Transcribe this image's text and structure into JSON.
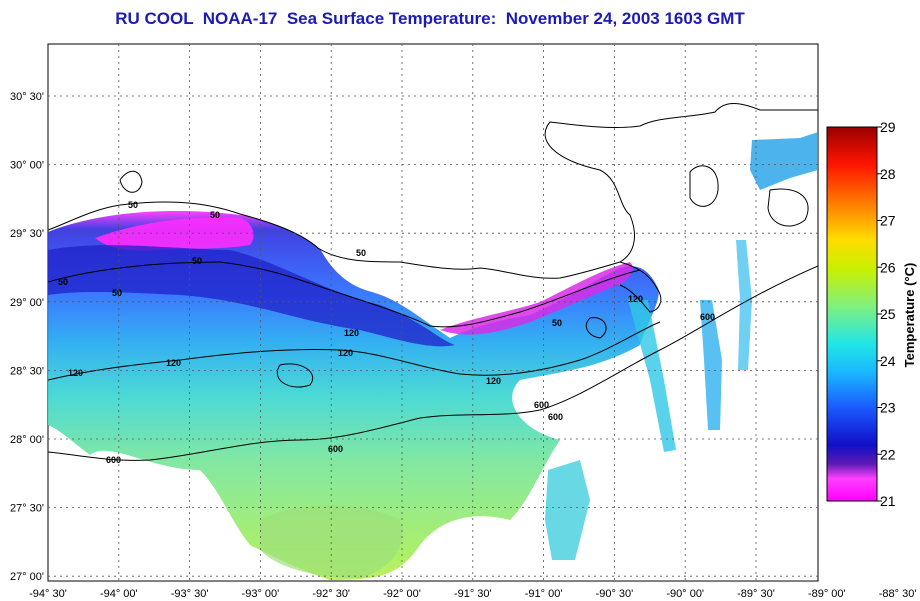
{
  "title": "RU COOL  NOAA-17  Sea Surface Temperature:  November 24, 2003 1603 GMT",
  "map": {
    "lon_ticks": [
      "-94° 30'",
      "-94° 00'",
      "-93° 30'",
      "-93° 00'",
      "-92° 30'",
      "-92° 00'",
      "-91° 30'",
      "-91° 00'",
      "-90° 30'",
      "-90° 00'",
      "-89° 30'",
      "-89° 00'",
      "-88° 30'"
    ],
    "lat_ticks": [
      "30° 30'",
      "30° 00'",
      "29° 30'",
      "29° 00'",
      "28° 30'",
      "28° 00'",
      "27° 30'",
      "27° 00'"
    ],
    "contour_labels": [
      "50",
      "50",
      "50",
      "50",
      "50",
      "50",
      "50",
      "120",
      "120",
      "120",
      "120",
      "120",
      "120",
      "600",
      "600",
      "600",
      "600",
      "600"
    ]
  },
  "colorbar": {
    "label": "Temperature (°C)",
    "ticks": [
      "29",
      "28",
      "27",
      "26",
      "25",
      "24",
      "23",
      "22",
      "21"
    ],
    "colors": [
      "#ff00ff",
      "#0000ff",
      "#00ffff",
      "#00ff00",
      "#ffff00",
      "#ff8000",
      "#ff0000",
      "#800000"
    ]
  }
}
